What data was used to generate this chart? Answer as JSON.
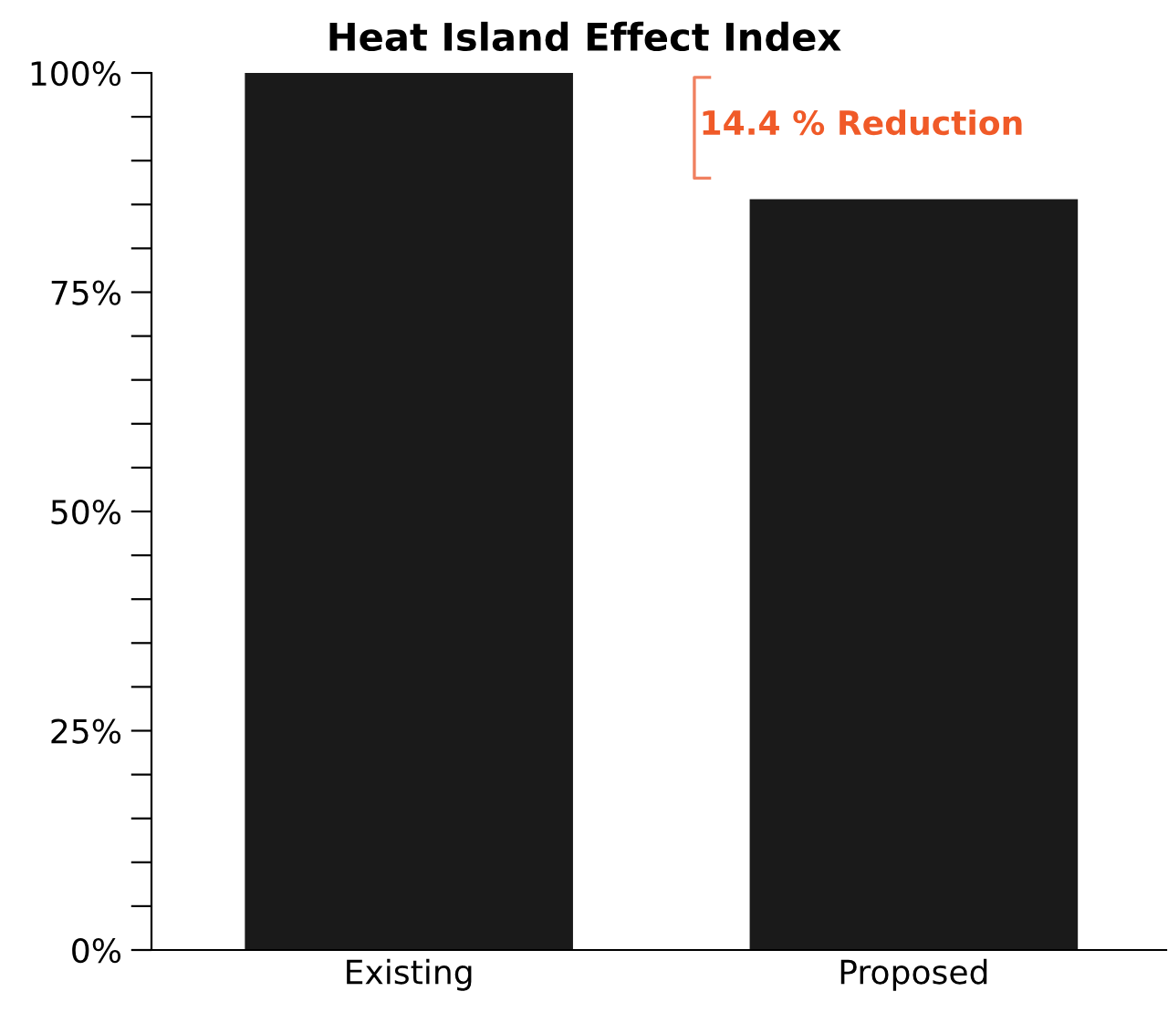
{
  "chart_data": {
    "type": "bar",
    "title": "Heat Island Effect Index",
    "categories": [
      "Existing",
      "Proposed"
    ],
    "values": [
      100,
      85.6
    ],
    "color": "#1a1a1a",
    "ylim": [
      0,
      100
    ],
    "yticks": [
      {
        "value": 0,
        "label": "0%"
      },
      {
        "value": 5,
        "label": null
      },
      {
        "value": 10,
        "label": null
      },
      {
        "value": 15,
        "label": null
      },
      {
        "value": 20,
        "label": null
      },
      {
        "value": 25,
        "label": "25%"
      },
      {
        "value": 30,
        "label": null
      },
      {
        "value": 35,
        "label": null
      },
      {
        "value": 40,
        "label": null
      },
      {
        "value": 45,
        "label": null
      },
      {
        "value": 50,
        "label": "50%"
      },
      {
        "value": 55,
        "label": null
      },
      {
        "value": 60,
        "label": null
      },
      {
        "value": 65,
        "label": null
      },
      {
        "value": 70,
        "label": null
      },
      {
        "value": 75,
        "label": "75%"
      },
      {
        "value": 80,
        "label": null
      },
      {
        "value": 85,
        "label": null
      },
      {
        "value": 90,
        "label": null
      },
      {
        "value": 95,
        "label": null
      },
      {
        "value": 100,
        "label": "100%"
      }
    ],
    "annotations": [
      "14.4 % Reduction"
    ],
    "grid": false,
    "legend": false
  }
}
